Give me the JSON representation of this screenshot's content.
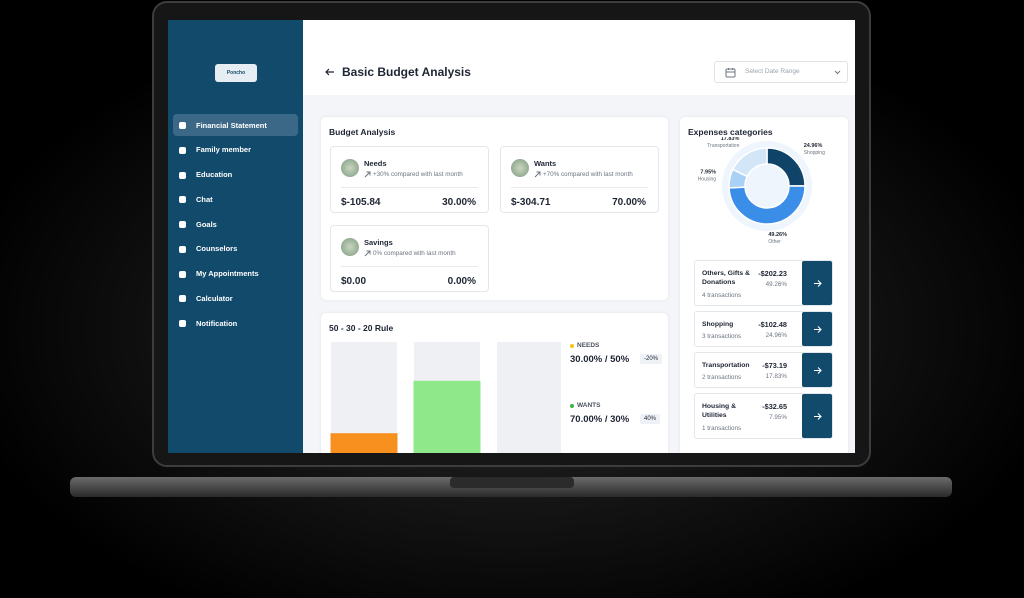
{
  "sidebar": {
    "logo": "Poncho",
    "menu": [
      "Financial Statement",
      "Family member",
      "Education",
      "Chat",
      "Goals",
      "Counselors",
      "My Appointments",
      "Calculator",
      "Notification"
    ]
  },
  "header": {
    "title": "Basic Budget Analysis",
    "date_range": "Select Date Range"
  },
  "budget_analysis": {
    "title": "Budget Analysis",
    "cards": [
      {
        "name": "Needs",
        "change": "+30% compared with last month",
        "amount": "$-105.84",
        "percent": "30.00%"
      },
      {
        "name": "Wants",
        "change": "+70% compared with last month",
        "amount": "$-304.71",
        "percent": "70.00%"
      },
      {
        "name": "Savings",
        "change": "0% compared with last month",
        "amount": "$0.00",
        "percent": "0.00%"
      }
    ]
  },
  "rule": {
    "title": "50 - 30 - 20 Rule",
    "items": [
      {
        "label": "NEEDS",
        "ratio": "30.00% / 50%",
        "badge": "-20%"
      },
      {
        "label": "WANTS",
        "ratio": "70.00% / 30%",
        "badge": "40%"
      }
    ]
  },
  "expenses": {
    "title": "Expenses categories",
    "items": [
      {
        "name": "Others, Gifts & Donations",
        "amount": "-$202.23",
        "percent": "49.26%",
        "count": "4 transactions"
      },
      {
        "name": "Shopping",
        "amount": "-$102.48",
        "percent": "24.96%",
        "count": "3 transactions"
      },
      {
        "name": "Transportation",
        "amount": "-$73.19",
        "percent": "17.83%",
        "count": "2 transactions"
      },
      {
        "name": "Housing & Utilities",
        "amount": "-$32.65",
        "percent": "7.95%",
        "count": "1 transactions"
      }
    ]
  },
  "chart_data": [
    {
      "type": "pie",
      "donut": true,
      "categories": [
        "Shopping",
        "Other",
        "Housing",
        "Transportation"
      ],
      "values": [
        24.96,
        49.26,
        7.95,
        17.83
      ],
      "value_labels": [
        "24.96%",
        "49.26%",
        "7.95%",
        "17.83%"
      ],
      "colors": [
        "#0f4468",
        "#3a8ee8",
        "#a9d0f5",
        "#d3e6f8"
      ]
    },
    {
      "type": "bar",
      "categories": [
        null,
        null,
        null
      ],
      "values": [
        30,
        70,
        0
      ],
      "colors": [
        "#f7901e",
        "#8fe88a",
        "#6b4fbb"
      ],
      "ylim": [
        0,
        100
      ]
    }
  ]
}
